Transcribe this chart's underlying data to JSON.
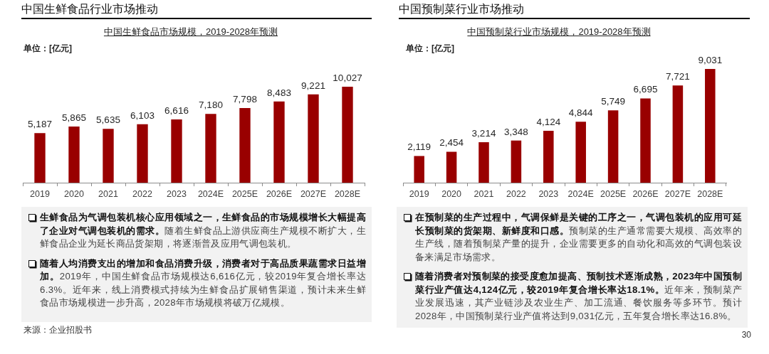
{
  "chart_data": [
    {
      "type": "bar",
      "title": "中国生鲜食品行业市场推动",
      "subtitle": "中国生鲜食品市场规模，2019-2028年预测",
      "ylabel": "单位：[亿元]",
      "categories": [
        "2019",
        "2020",
        "2021",
        "2022",
        "2023",
        "2024E",
        "2025E",
        "2026E",
        "2027E",
        "2028E"
      ],
      "values": [
        5187,
        5865,
        5635,
        6103,
        6616,
        7180,
        7798,
        8483,
        9221,
        10027
      ],
      "value_labels": [
        "5,187",
        "5,865",
        "5,635",
        "6,103",
        "6,616",
        "7,180",
        "7,798",
        "8,483",
        "9,221",
        "10,027"
      ],
      "color": "#990000",
      "annotations": [
        "生鲜食品为气调包装机核心应用领域之一，生鲜食品的市场规模增长大幅提高了企业对气调包装机的需求。随着生鲜食品上游供应商生产规模不断扩大，生鲜食品企业为延长商品货架期，将逐渐普及应用气调包装机。",
        "随着人均消费支出的增加和食品消费升级，消费者对于高品质果蔬需求日益增加。2019年，中国生鲜食品市场规模达6,616亿元，较2019年复合增长率达6.3%。近年来，线上消费模式持续为生鲜食品扩展销售渠道，预计未来生鲜食品市场规模进一步升高，2028年市场规模将破万亿规模。",
        "来源：企业招股书"
      ]
    },
    {
      "type": "bar",
      "title": "中国预制菜行业市场推动",
      "subtitle": "中国预制菜行业市场规模，2019-2028年预测",
      "ylabel": "单位：[亿元]",
      "categories": [
        "2019",
        "2020",
        "2021",
        "2022",
        "2023",
        "2024E",
        "2025E",
        "2026E",
        "2027E",
        "2028E"
      ],
      "values": [
        2119,
        2454,
        3214,
        3348,
        4124,
        4844,
        5749,
        6695,
        7721,
        9031
      ],
      "value_labels": [
        "2,119",
        "2,454",
        "3,214",
        "3,348",
        "4,124",
        "4,844",
        "5,749",
        "6,695",
        "7,721",
        "9,031"
      ],
      "color": "#990000",
      "annotations": [
        "在预制菜的生产过程中，气调保鲜是关键的工序之一，气调包装机的应用可延长预制菜的货架期、新鲜度和口感。预制菜的生产通常需要大规模、高效率的生产线，随着预制菜产量的提升，企业需要更多的自动化和高效的气调包装设备来满足市场需求。",
        "随着消费者对预制菜的接受度愈加提高、预制技术逐渐成熟，2023年中国预制菜行业产值达4,124亿元，较2019年复合增长率达18.1%。近年来，预制菜产业发展迅速，其产业链涉及农业生产、加工流通、餐饮服务等多环节。预计2028年，中国预制菜行业产值将达到9,031亿元，五年复合增长率达16.8%。",
        "30"
      ]
    }
  ]
}
